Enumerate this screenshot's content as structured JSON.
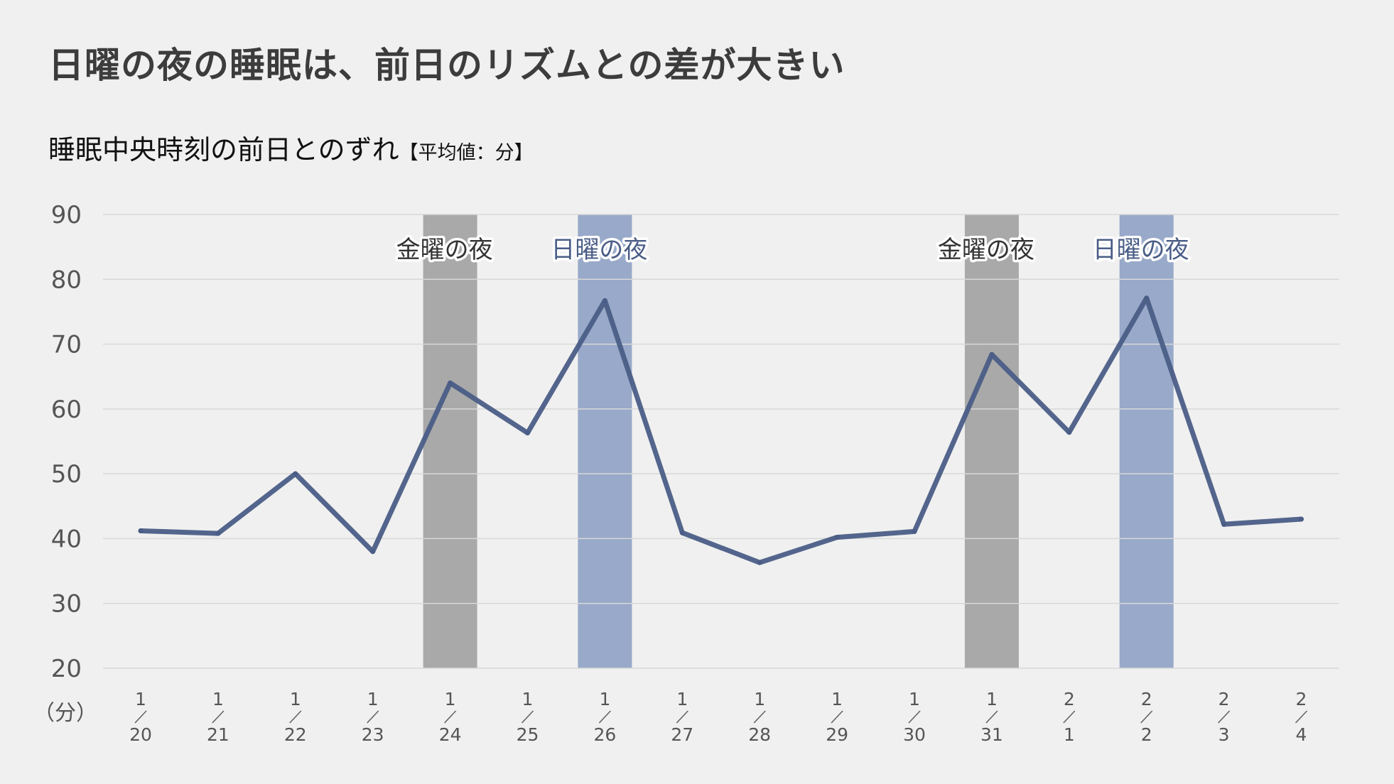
{
  "title": "日曜の夜の睡眠は、前日のリズムとの差が大きい",
  "subtitle": {
    "main": "睡眠中央時刻の前日とのずれ",
    "unit": "【平均値：分】"
  },
  "colors": {
    "line": "#4a5d86",
    "friday_band": "#a9a9a9",
    "sunday_band": "#98a9c9",
    "friday_label": "#333333",
    "sunday_label": "#4a5d86"
  },
  "chart_data": {
    "type": "line",
    "title": "",
    "ylabel": "（分）",
    "ylim": [
      20,
      90
    ],
    "yticks": [
      20,
      30,
      40,
      50,
      60,
      70,
      80,
      90
    ],
    "grid": true,
    "categories": [
      {
        "month": "1",
        "day": "20"
      },
      {
        "month": "1",
        "day": "21"
      },
      {
        "month": "1",
        "day": "22"
      },
      {
        "month": "1",
        "day": "23"
      },
      {
        "month": "1",
        "day": "24"
      },
      {
        "month": "1",
        "day": "25"
      },
      {
        "month": "1",
        "day": "26"
      },
      {
        "month": "1",
        "day": "27"
      },
      {
        "month": "1",
        "day": "28"
      },
      {
        "month": "1",
        "day": "29"
      },
      {
        "month": "1",
        "day": "30"
      },
      {
        "month": "1",
        "day": "31"
      },
      {
        "month": "2",
        "day": "1"
      },
      {
        "month": "2",
        "day": "2"
      },
      {
        "month": "2",
        "day": "3"
      },
      {
        "month": "2",
        "day": "4"
      }
    ],
    "series": [
      {
        "values": [
          41.2,
          40.8,
          50.0,
          38.0,
          64.0,
          56.3,
          76.7,
          40.9,
          36.3,
          40.2,
          41.1,
          68.4,
          56.4,
          77.1,
          42.2,
          43.0
        ]
      }
    ],
    "highlights": [
      {
        "index": 4,
        "label": "金曜の夜",
        "kind": "friday"
      },
      {
        "index": 6,
        "label": "日曜の夜",
        "kind": "sunday"
      },
      {
        "index": 11,
        "label": "金曜の夜",
        "kind": "friday"
      },
      {
        "index": 13,
        "label": "日曜の夜",
        "kind": "sunday"
      }
    ]
  }
}
